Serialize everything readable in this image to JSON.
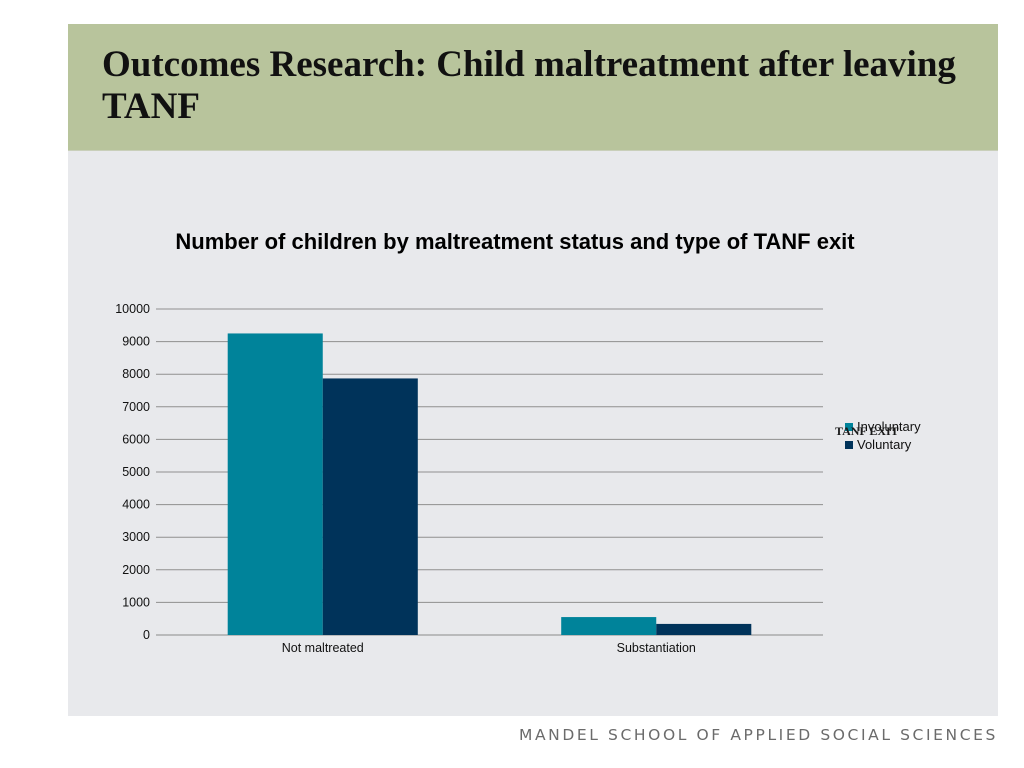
{
  "slide": {
    "title": "Outcomes Research: Child maltreatment after leaving TANF",
    "footer": "MANDEL SCHOOL OF APPLIED SOCIAL SCIENCES",
    "colors": {
      "title_band": "#b8c49c",
      "panel": "#e8e9ec"
    }
  },
  "chart_data": {
    "type": "bar",
    "title": "Number of children by maltreatment status and type of TANF exit",
    "categories": [
      "Not maltreated",
      "Substantiation"
    ],
    "series": [
      {
        "name": "Involuntary",
        "values": [
          9250,
          550
        ],
        "color": "#00839a"
      },
      {
        "name": "Voluntary",
        "values": [
          7870,
          340
        ],
        "color": "#00335a"
      }
    ],
    "legend_title": "TANF EXIT",
    "legend_position": "right",
    "ylim": [
      0,
      10000
    ],
    "yticks": [
      0,
      1000,
      2000,
      3000,
      4000,
      5000,
      6000,
      7000,
      8000,
      9000,
      10000
    ],
    "grid": true,
    "xlabel": "",
    "ylabel": ""
  }
}
